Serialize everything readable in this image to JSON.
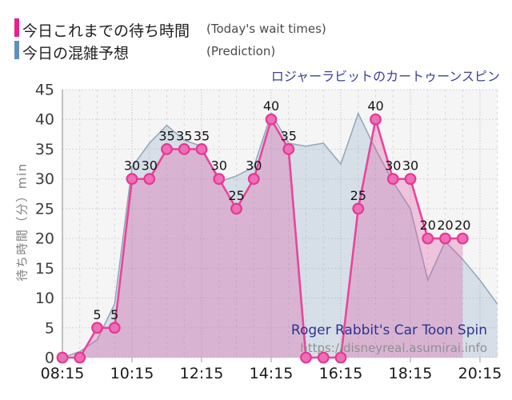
{
  "title": "ロジャーラビットのカートゥーンスピン",
  "y_axis_title": "待ち時間（分）min",
  "legend": {
    "actual": {
      "label": "今日これまでの待ち時間",
      "label_en": "(Today's wait times)",
      "color": "#ec1f8c"
    },
    "prediction": {
      "label": "今日の混雑予想",
      "label_en": "(Prediction)",
      "color": "#6190bd"
    }
  },
  "watermark": {
    "line1": "Roger Rabbit's Car Toon Spin",
    "line2": "https://disneyreal.asumirai.info"
  },
  "chart_data": {
    "type": "area",
    "x_start_time": "08:15",
    "x_interval_minutes": 30,
    "x_tick_labels": [
      "08:15",
      "10:15",
      "12:15",
      "14:15",
      "16:15",
      "18:15",
      "20:15"
    ],
    "y_ticks": [
      0,
      5,
      10,
      15,
      20,
      25,
      30,
      35,
      40,
      45
    ],
    "ylim": [
      0,
      45
    ],
    "grid": "dotted",
    "plot_bg": "#f5f5f6",
    "grid_color": "#cbcbcf",
    "axis_color": "#9b9b9b",
    "series": [
      {
        "name": "今日の混雑予想 (Prediction)",
        "style": "area",
        "line_color": "#93a9bb",
        "fill_color": "rgba(125,160,190,0.25)",
        "times": [
          "08:15",
          "08:45",
          "09:15",
          "09:45",
          "10:15",
          "10:45",
          "11:15",
          "11:45",
          "12:15",
          "12:45",
          "13:15",
          "13:45",
          "14:15",
          "14:45",
          "15:15",
          "15:45",
          "16:15",
          "16:45",
          "17:15",
          "17:45",
          "18:15",
          "18:45",
          "19:15",
          "19:45",
          "20:15",
          "20:45"
        ],
        "values": [
          0,
          1,
          3,
          9,
          32,
          36,
          39,
          36.5,
          35.5,
          29.5,
          30.5,
          32,
          41,
          36,
          35.5,
          36,
          32.5,
          41,
          35,
          29.5,
          25,
          13,
          19.5,
          16.5,
          13,
          9
        ]
      },
      {
        "name": "今日これまでの待ち時間 (Today's wait times)",
        "style": "line-area-markers",
        "line_color": "#e8459b",
        "fill_color": "rgba(224,90,165,0.32)",
        "marker_fill": "#f06eb6",
        "marker_stroke": "#e23a94",
        "times": [
          "08:15",
          "08:45",
          "09:15",
          "09:45",
          "10:15",
          "10:45",
          "11:15",
          "11:45",
          "12:15",
          "12:45",
          "13:15",
          "13:45",
          "14:15",
          "14:45",
          "15:15",
          "15:45",
          "16:15",
          "16:45",
          "17:15",
          "17:45",
          "18:15",
          "18:45",
          "19:15",
          "19:45"
        ],
        "values": [
          0,
          0,
          5,
          5,
          30,
          30,
          35,
          35,
          35,
          30,
          25,
          30,
          40,
          35,
          0,
          0,
          0,
          25,
          40,
          30,
          30,
          20,
          20,
          20
        ],
        "labels": [
          "",
          "",
          "5",
          "5",
          "30",
          "30",
          "35",
          "35",
          "35",
          "30",
          "25",
          "30",
          "40",
          "35",
          "",
          "",
          "",
          "25",
          "40",
          "30",
          "30",
          "20",
          "20",
          "20"
        ]
      }
    ]
  }
}
